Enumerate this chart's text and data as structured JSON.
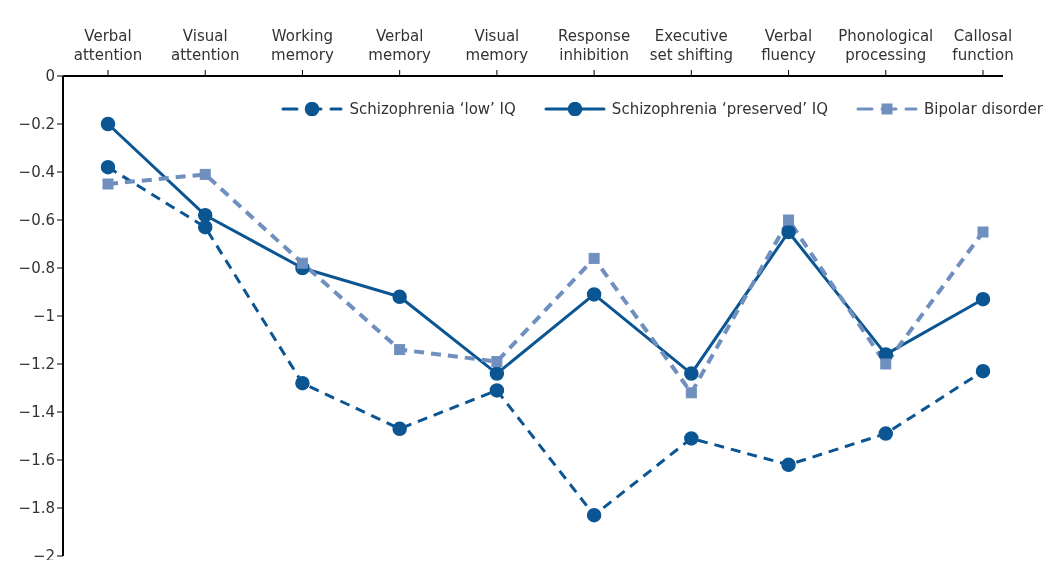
{
  "chart_data": {
    "type": "line",
    "categories": [
      "Verbal attention",
      "Visual attention",
      "Working memory",
      "Verbal memory",
      "Visual memory",
      "Response inhibition",
      "Executive set shifting",
      "Verbal fluency",
      "Phonological processing",
      "Callosal function"
    ],
    "series": [
      {
        "name": "Schizophrenia ‘low’ IQ",
        "color": "#0b5592",
        "line_style": "dashed",
        "marker": "circle",
        "values": [
          -0.38,
          -0.63,
          -1.28,
          -1.47,
          -1.31,
          -1.83,
          -1.51,
          -1.62,
          -1.49,
          -1.23
        ]
      },
      {
        "name": "Schizophrenia ‘preserved’ IQ",
        "color": "#0b5592",
        "line_style": "solid",
        "marker": "circle",
        "values": [
          -0.2,
          -0.58,
          -0.8,
          -0.92,
          -1.24,
          -0.91,
          -1.24,
          -0.65,
          -1.16,
          -0.93
        ]
      },
      {
        "name": "Bipolar disorder",
        "color": "#6f8fbf",
        "line_style": "dashed",
        "marker": "square",
        "values": [
          -0.45,
          -0.41,
          -0.78,
          -1.14,
          -1.19,
          -0.76,
          -1.32,
          -0.6,
          -1.2,
          -0.65
        ]
      }
    ],
    "ylim": [
      -2,
      0
    ],
    "yticks": [
      0,
      {
        "value": -0.2,
        "label": "−0.2"
      },
      {
        "value": -0.4,
        "label": "−0.4"
      },
      {
        "value": -0.6,
        "label": "−0.6"
      },
      {
        "value": -0.8,
        "label": "−0.8"
      },
      {
        "value": -1,
        "label": "−1"
      },
      {
        "value": -1.2,
        "label": "−1.2"
      },
      {
        "value": -1.4,
        "label": "−1.4"
      },
      {
        "value": -1.6,
        "label": "−1.6"
      },
      {
        "value": -1.8,
        "label": "−1.8"
      },
      {
        "value": -2,
        "label": "−2"
      }
    ],
    "grid": false,
    "legend": "top right"
  }
}
